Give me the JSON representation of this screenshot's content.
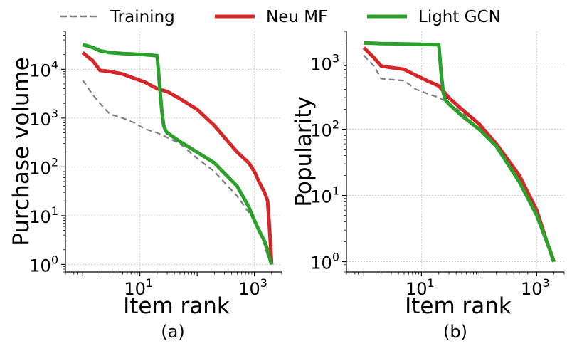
{
  "legend": {
    "entries": [
      {
        "label": "Training",
        "color": "#7f7f7f",
        "style": "dashed"
      },
      {
        "label": "Neu MF",
        "color": "#d62728",
        "style": "solid"
      },
      {
        "label": "Light GCN",
        "color": "#2ca02c",
        "style": "solid"
      }
    ]
  },
  "chart_data": [
    {
      "type": "line",
      "caption": "(a)",
      "xlabel": "Item rank",
      "ylabel": "Purchase volume",
      "xscale": "log",
      "yscale": "log",
      "xlim": [
        0.5,
        3000
      ],
      "ylim": [
        0.7,
        60000
      ],
      "xticks": [
        {
          "value": 10,
          "base": "10",
          "exp": "1"
        },
        {
          "value": 1000,
          "base": "10",
          "exp": "3"
        }
      ],
      "yticks": [
        {
          "value": 1,
          "base": "10",
          "exp": "0"
        },
        {
          "value": 10,
          "base": "10",
          "exp": "1"
        },
        {
          "value": 100,
          "base": "10",
          "exp": "2"
        },
        {
          "value": 1000,
          "base": "10",
          "exp": "3"
        },
        {
          "value": 10000,
          "base": "10",
          "exp": "4"
        }
      ],
      "grid": true,
      "series": [
        {
          "name": "Training",
          "x": [
            1,
            1.5,
            2,
            3,
            5,
            8,
            12,
            20,
            30,
            50,
            100,
            200,
            500,
            1000,
            1500,
            1700,
            2000
          ],
          "y": [
            6000,
            3000,
            2000,
            1200,
            1000,
            800,
            600,
            500,
            400,
            300,
            150,
            80,
            25,
            8,
            2.5,
            1.5,
            1
          ]
        },
        {
          "name": "Neu MF",
          "x": [
            1,
            1.5,
            2,
            3,
            5,
            8,
            12,
            20,
            30,
            50,
            100,
            200,
            300,
            500,
            800,
            1000,
            1200,
            1500,
            1700,
            1800,
            1900,
            2000
          ],
          "y": [
            22000,
            15000,
            9500,
            9000,
            8000,
            6500,
            5500,
            4000,
            3500,
            2500,
            1500,
            700,
            400,
            200,
            120,
            80,
            50,
            30,
            20,
            8,
            3,
            1
          ]
        },
        {
          "name": "Light GCN",
          "x": [
            1,
            1.5,
            2,
            3,
            5,
            8,
            12,
            20,
            22,
            24,
            26,
            28,
            30,
            50,
            100,
            200,
            500,
            800,
            1000,
            1200,
            1500,
            1700,
            1800,
            1900,
            2000
          ],
          "y": [
            32000,
            28000,
            24000,
            22000,
            21000,
            20500,
            20000,
            19000,
            5000,
            1500,
            700,
            560,
            500,
            330,
            200,
            120,
            40,
            15,
            8,
            5,
            3,
            2,
            1.5,
            1.2,
            1
          ]
        }
      ]
    },
    {
      "type": "line",
      "caption": "(b)",
      "xlabel": "Item rank",
      "ylabel": "Popularity",
      "xscale": "log",
      "yscale": "log",
      "xlim": [
        0.5,
        3000
      ],
      "ylim": [
        0.7,
        3000
      ],
      "xticks": [
        {
          "value": 10,
          "base": "10",
          "exp": "1"
        },
        {
          "value": 1000,
          "base": "10",
          "exp": "3"
        }
      ],
      "yticks": [
        {
          "value": 1,
          "base": "10",
          "exp": "0"
        },
        {
          "value": 10,
          "base": "10",
          "exp": "1"
        },
        {
          "value": 100,
          "base": "10",
          "exp": "2"
        },
        {
          "value": 1000,
          "base": "10",
          "exp": "3"
        }
      ],
      "grid": true,
      "series": [
        {
          "name": "Training",
          "x": [
            1,
            1.5,
            2,
            3,
            5,
            8,
            12,
            20,
            30,
            50,
            100,
            200,
            500,
            1000,
            1500,
            1700,
            2000
          ],
          "y": [
            1300,
            900,
            580,
            560,
            540,
            400,
            350,
            300,
            250,
            180,
            100,
            55,
            18,
            5,
            2,
            1.5,
            1
          ]
        },
        {
          "name": "Neu MF",
          "x": [
            1,
            1.5,
            2,
            3,
            5,
            8,
            12,
            20,
            30,
            50,
            100,
            200,
            500,
            1000,
            1500,
            1700,
            2000
          ],
          "y": [
            1700,
            1200,
            900,
            850,
            800,
            650,
            550,
            450,
            300,
            200,
            120,
            60,
            20,
            6,
            2,
            1.5,
            1
          ]
        },
        {
          "name": "Light GCN",
          "x": [
            1,
            1.5,
            2,
            3,
            5,
            8,
            12,
            20,
            22,
            24,
            26,
            30,
            50,
            100,
            200,
            500,
            1000,
            1500,
            1700,
            1900,
            2000
          ],
          "y": [
            2000,
            1980,
            1960,
            1950,
            1930,
            1920,
            1900,
            1880,
            700,
            350,
            280,
            240,
            160,
            100,
            55,
            16,
            5,
            2,
            1.5,
            1.1,
            1
          ]
        }
      ]
    }
  ]
}
